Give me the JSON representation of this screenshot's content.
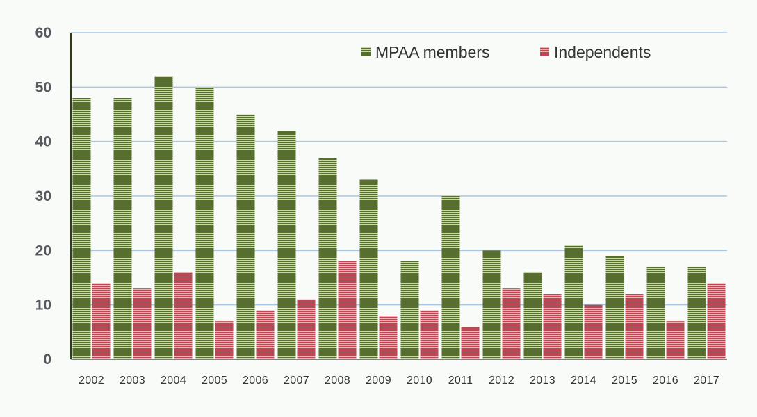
{
  "chart_data": {
    "type": "bar",
    "categories": [
      "2002",
      "2003",
      "2004",
      "2005",
      "2006",
      "2007",
      "2008",
      "2009",
      "2010",
      "2011",
      "2012",
      "2013",
      "2014",
      "2015",
      "2016",
      "2017"
    ],
    "series": [
      {
        "name": "MPAA members",
        "color": "#6f8f3a",
        "values": [
          48,
          48,
          52,
          50,
          45,
          42,
          37,
          33,
          18,
          30,
          20,
          16,
          21,
          19,
          17,
          17
        ]
      },
      {
        "name": "Independents",
        "color": "#c8505a",
        "values": [
          14,
          13,
          16,
          7,
          9,
          11,
          18,
          8,
          9,
          6,
          13,
          12,
          10,
          12,
          7,
          14
        ]
      }
    ],
    "title": "",
    "xlabel": "",
    "ylabel": "",
    "ylim": [
      0,
      60
    ],
    "yticks": [
      0,
      10,
      20,
      30,
      40,
      50,
      60
    ],
    "grid": true,
    "legend_position": "top-right"
  }
}
